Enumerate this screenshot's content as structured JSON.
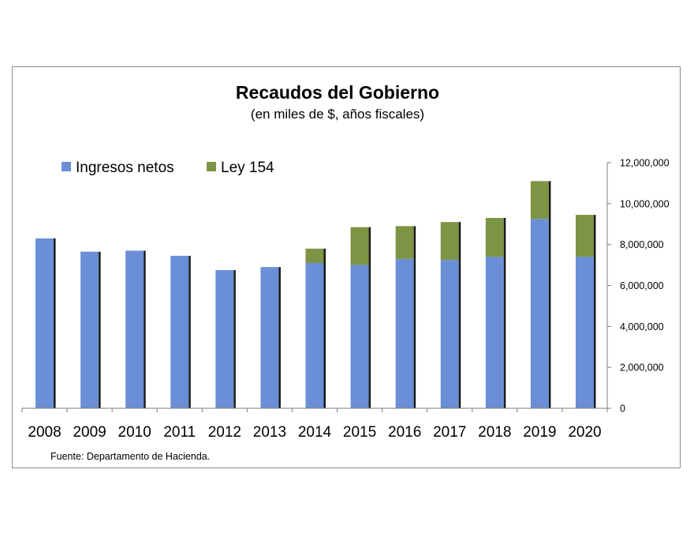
{
  "chart_data": {
    "type": "bar",
    "stacked": true,
    "title": "Recaudos del Gobierno",
    "subtitle": "(en miles de $, años fiscales)",
    "categories": [
      "2008",
      "2009",
      "2010",
      "2011",
      "2012",
      "2013",
      "2014",
      "2015",
      "2016",
      "2017",
      "2018",
      "2019",
      "2020"
    ],
    "series": [
      {
        "name": "Ingresos netos",
        "color": "#6a8fd6",
        "values": [
          8300000,
          7650000,
          7700000,
          7450000,
          6750000,
          6900000,
          7100000,
          7000000,
          7300000,
          7250000,
          7400000,
          9250000,
          7400000
        ]
      },
      {
        "name": "Ley 154",
        "color": "#7d9445",
        "values": [
          0,
          0,
          0,
          0,
          0,
          0,
          700000,
          1850000,
          1600000,
          1850000,
          1900000,
          1850000,
          2050000
        ]
      }
    ],
    "ylim": [
      0,
      12000000
    ],
    "yticks": [
      "0",
      "2,000,000",
      "4,000,000",
      "6,000,000",
      "8,000,000",
      "10,000,000",
      "12,000,000"
    ],
    "y_axis_side": "right",
    "legend_position": "top-left",
    "grid": false,
    "source_note": "Fuente: Departamento de Hacienda."
  }
}
